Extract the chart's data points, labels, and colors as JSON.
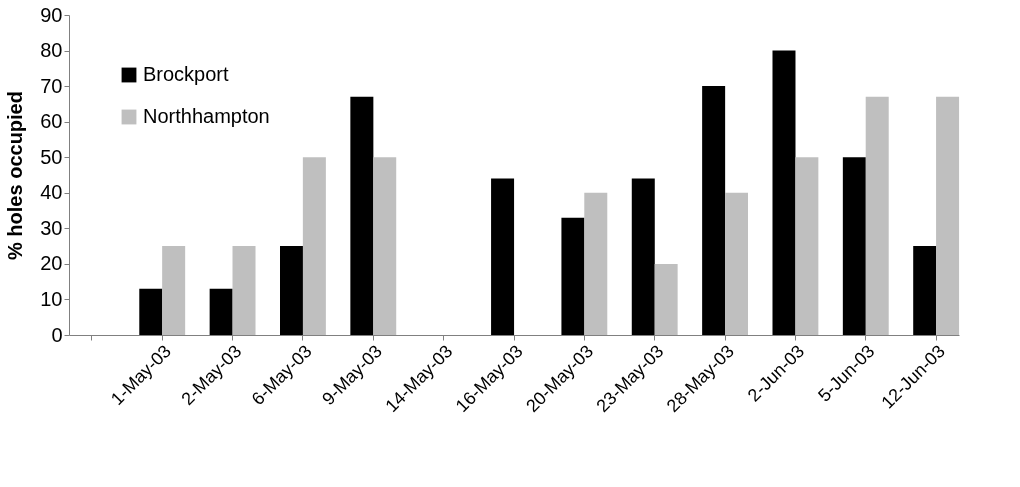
{
  "chart_data": {
    "type": "bar",
    "ylabel": "% holes occupied",
    "categories": [
      null,
      "1-May-03",
      "2-May-03",
      "6-May-03",
      "9-May-03",
      "14-May-03",
      "16-May-03",
      "20-May-03",
      "23-May-03",
      "28-May-03",
      "2-Jun-03",
      "5-Jun-03",
      "12-Jun-03"
    ],
    "series": [
      {
        "name": "Brockport",
        "color": "#000000",
        "values": [
          null,
          13,
          13,
          25,
          67,
          null,
          44,
          33,
          44,
          70,
          80,
          50,
          25
        ]
      },
      {
        "name": "Northhampton",
        "color": "#bfbfbf",
        "values": [
          null,
          25,
          25,
          50,
          50,
          null,
          null,
          40,
          20,
          40,
          50,
          67,
          67
        ]
      }
    ],
    "ylim": [
      0,
      90
    ],
    "yticks": [
      0,
      10,
      20,
      30,
      40,
      50,
      60,
      70,
      80,
      90
    ],
    "grid": false,
    "legend": "top left"
  }
}
